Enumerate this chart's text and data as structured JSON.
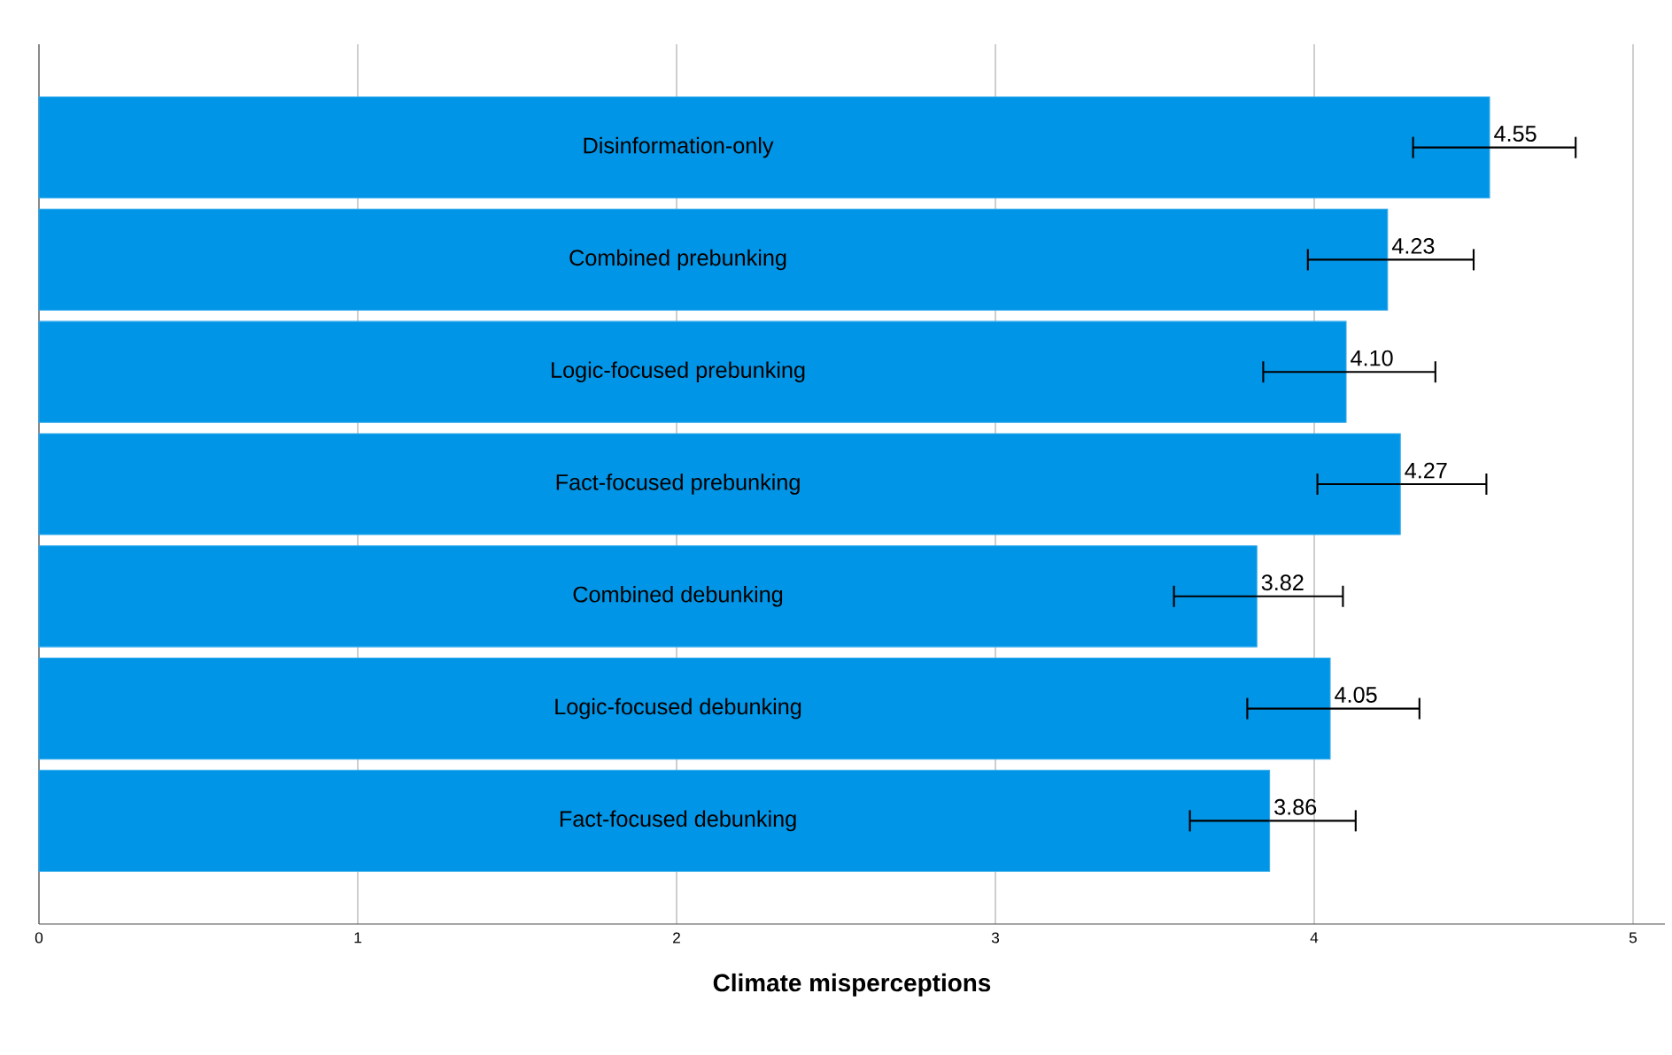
{
  "chart_data": {
    "type": "bar",
    "orientation": "horizontal",
    "xlabel": "Climate misperceptions",
    "categories": [
      "Disinformation-only",
      "Combined prebunking",
      "Logic-focused prebunking",
      "Fact-focused prebunking",
      "Combined debunking",
      "Logic-focused debunking",
      "Fact-focused debunking"
    ],
    "values": [
      4.55,
      4.23,
      4.1,
      4.27,
      3.82,
      4.05,
      3.86
    ],
    "errors": [
      [
        4.31,
        4.82
      ],
      [
        3.98,
        4.5
      ],
      [
        3.84,
        4.38
      ],
      [
        4.01,
        4.54
      ],
      [
        3.56,
        4.09
      ],
      [
        3.79,
        4.33
      ],
      [
        3.61,
        4.13
      ]
    ],
    "color": "#0095e6",
    "value_labels": [
      "4.55",
      "4.23",
      "4.10",
      "4.27",
      "3.82",
      "4.05",
      "3.86"
    ],
    "xlim": [
      0,
      5.1
    ],
    "xticks": [
      0,
      1,
      2,
      3,
      4,
      5
    ],
    "grid": "x"
  }
}
